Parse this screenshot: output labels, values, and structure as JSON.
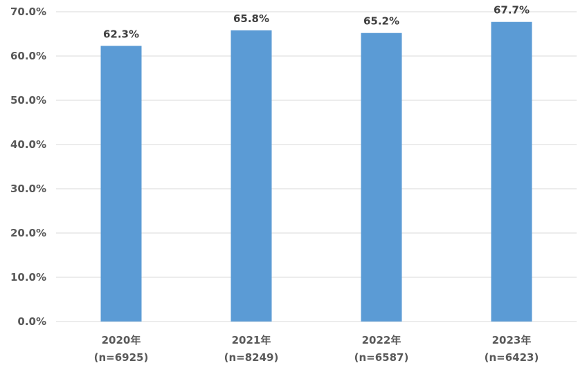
{
  "chart_data": {
    "type": "bar",
    "title": "",
    "xlabel": "",
    "ylabel": "",
    "categories": [
      "2020年",
      "2021年",
      "2022年",
      "2023年"
    ],
    "sample_sizes": [
      "(n=6925)",
      "(n=8249)",
      "(n=6587)",
      "(n=6423)"
    ],
    "values": [
      62.3,
      65.8,
      65.2,
      67.7
    ],
    "data_labels": [
      "62.3%",
      "65.8%",
      "65.2%",
      "67.7%"
    ],
    "ylim": [
      0,
      70
    ],
    "yticks": [
      0,
      10,
      20,
      30,
      40,
      50,
      60,
      70
    ],
    "ytick_labels": [
      "0.0%",
      "10.0%",
      "20.0%",
      "30.0%",
      "40.0%",
      "50.0%",
      "60.0%",
      "70.0%"
    ],
    "grid": true,
    "legend": "none",
    "bar_color": "#5B9BD5",
    "grid_color": "#D9D9D9"
  }
}
